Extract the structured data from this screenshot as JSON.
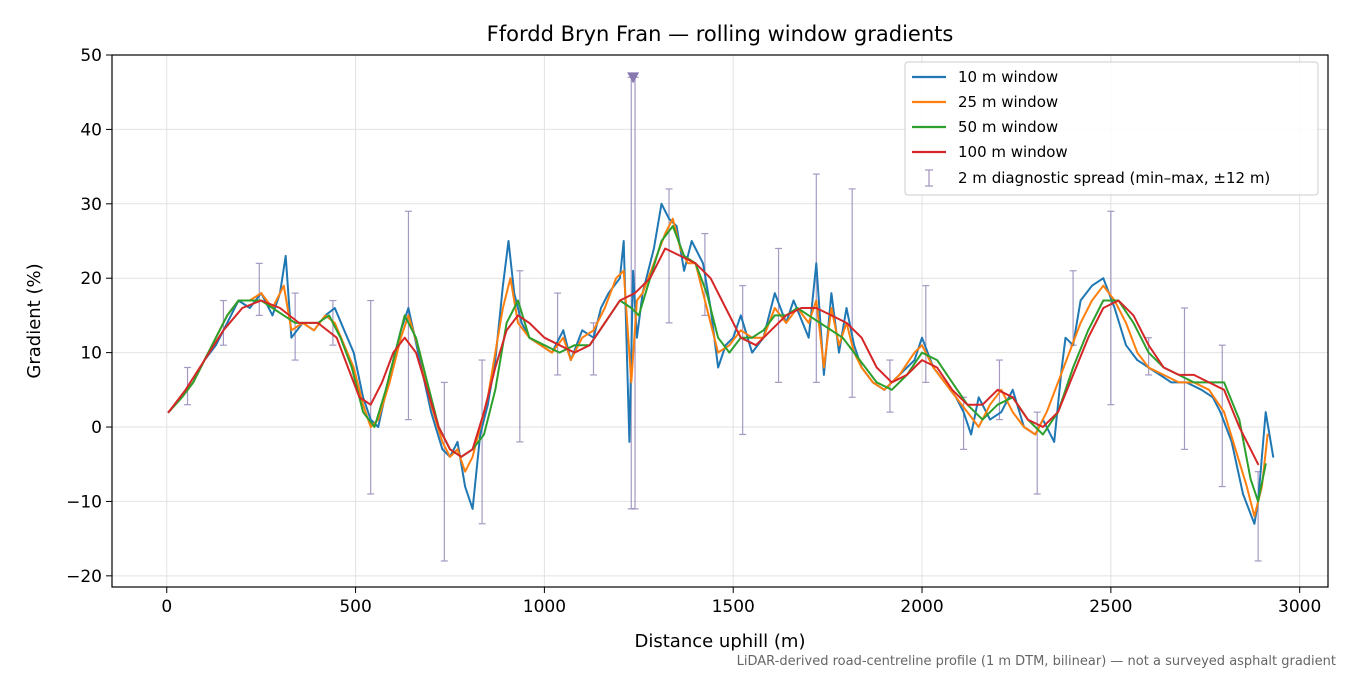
{
  "chart_data": {
    "type": "line",
    "title": "Ffordd Bryn Fran — rolling window gradients",
    "xlabel": "Distance uphill (m)",
    "ylabel": "Gradient (%)",
    "xlim": [
      -145,
      3075
    ],
    "ylim": [
      -21.5,
      50
    ],
    "x_ticks": [
      0,
      500,
      1000,
      1500,
      2000,
      2500,
      3000
    ],
    "y_ticks": [
      -20,
      -10,
      0,
      10,
      20,
      30,
      40,
      50
    ],
    "grid": true,
    "legend_position": "top-right",
    "footnote": "LiDAR-derived road-centreline profile (1 m DTM, bilinear) — not a surveyed asphalt gradient",
    "series": [
      {
        "name": "10 m window",
        "color": "#1f77b4",
        "x": [
          5,
          40,
          70,
          100,
          130,
          160,
          190,
          220,
          250,
          280,
          300,
          315,
          330,
          360,
          390,
          420,
          445,
          470,
          495,
          520,
          540,
          560,
          590,
          620,
          640,
          670,
          700,
          730,
          750,
          770,
          790,
          810,
          830,
          850,
          870,
          890,
          905,
          920,
          940,
          960,
          990,
          1020,
          1050,
          1070,
          1100,
          1130,
          1150,
          1170,
          1200,
          1210,
          1225,
          1235,
          1245,
          1260,
          1290,
          1310,
          1330,
          1350,
          1370,
          1390,
          1420,
          1440,
          1460,
          1480,
          1500,
          1520,
          1550,
          1580,
          1610,
          1640,
          1660,
          1700,
          1720,
          1740,
          1760,
          1780,
          1800,
          1820,
          1840,
          1870,
          1900,
          1940,
          1980,
          2000,
          2030,
          2060,
          2090,
          2110,
          2130,
          2150,
          2180,
          2210,
          2240,
          2270,
          2300,
          2320,
          2350,
          2370,
          2380,
          2400,
          2420,
          2450,
          2480,
          2510,
          2540,
          2570,
          2600,
          2630,
          2660,
          2700,
          2740,
          2770,
          2790,
          2820,
          2850,
          2880,
          2890,
          2910,
          2930
        ],
        "values": [
          2,
          4,
          6,
          9,
          11,
          14,
          17,
          16,
          18,
          15,
          18,
          23,
          12,
          14,
          13,
          15,
          16,
          13,
          10,
          4,
          1,
          0,
          7,
          13,
          16,
          9,
          2,
          -3,
          -4,
          -2,
          -8,
          -11,
          -1,
          3,
          9,
          19,
          25,
          18,
          14,
          12,
          11,
          10,
          13,
          9,
          13,
          12,
          16,
          18,
          20,
          25,
          -2,
          21,
          12,
          18,
          24,
          30,
          28,
          27,
          21,
          25,
          22,
          16,
          8,
          11,
          12,
          15,
          10,
          12,
          18,
          14,
          17,
          12,
          22,
          7,
          18,
          10,
          16,
          11,
          8,
          6,
          5,
          7,
          9,
          12,
          8,
          6,
          4,
          2,
          -1,
          4,
          1,
          2,
          5,
          0,
          -1,
          1,
          -2,
          8,
          12,
          11,
          17,
          19,
          20,
          16,
          11,
          9,
          8,
          7,
          6,
          6,
          5,
          4,
          2,
          -2,
          -9,
          -13,
          -10,
          2,
          -4
        ]
      },
      {
        "name": "25 m window",
        "color": "#ff7f0e",
        "x": [
          5,
          40,
          70,
          100,
          130,
          160,
          190,
          220,
          250,
          280,
          310,
          330,
          360,
          390,
          420,
          445,
          470,
          495,
          520,
          540,
          560,
          590,
          620,
          640,
          670,
          700,
          730,
          750,
          770,
          790,
          810,
          830,
          850,
          870,
          890,
          910,
          930,
          960,
          990,
          1020,
          1050,
          1070,
          1100,
          1130,
          1160,
          1190,
          1210,
          1230,
          1245,
          1260,
          1290,
          1320,
          1340,
          1360,
          1380,
          1400,
          1430,
          1460,
          1490,
          1520,
          1550,
          1580,
          1610,
          1640,
          1670,
          1700,
          1720,
          1740,
          1760,
          1780,
          1800,
          1820,
          1840,
          1870,
          1900,
          1940,
          1980,
          2000,
          2030,
          2060,
          2090,
          2120,
          2150,
          2180,
          2210,
          2240,
          2270,
          2300,
          2330,
          2360,
          2390,
          2420,
          2450,
          2480,
          2510,
          2540,
          2570,
          2600,
          2640,
          2680,
          2720,
          2760,
          2800,
          2830,
          2860,
          2880,
          2900,
          2915
        ],
        "values": [
          2,
          4,
          6,
          9,
          12,
          15,
          17,
          17,
          18,
          16,
          19,
          13,
          14,
          13,
          15,
          14,
          11,
          8,
          3,
          0,
          1,
          6,
          12,
          15,
          10,
          3,
          -2,
          -4,
          -3,
          -6,
          -4,
          0,
          4,
          10,
          16,
          20,
          14,
          12,
          11,
          10,
          12,
          9,
          12,
          13,
          16,
          20,
          21,
          6,
          17,
          18,
          22,
          26,
          28,
          24,
          22,
          22,
          16,
          10,
          11,
          13,
          12,
          12,
          16,
          14,
          16,
          14,
          17,
          8,
          16,
          11,
          14,
          10,
          8,
          6,
          5,
          7,
          10,
          11,
          8,
          6,
          4,
          2,
          0,
          3,
          5,
          2,
          0,
          -1,
          2,
          6,
          10,
          14,
          17,
          19,
          17,
          14,
          10,
          8,
          7,
          6,
          6,
          5,
          2,
          -3,
          -8,
          -12,
          -8,
          -1
        ]
      },
      {
        "name": "50 m window",
        "color": "#2ca02c",
        "x": [
          5,
          40,
          70,
          100,
          130,
          160,
          190,
          220,
          250,
          280,
          310,
          340,
          370,
          400,
          430,
          460,
          490,
          520,
          550,
          580,
          610,
          630,
          660,
          690,
          720,
          750,
          780,
          810,
          840,
          870,
          900,
          930,
          960,
          1000,
          1040,
          1080,
          1120,
          1160,
          1200,
          1230,
          1250,
          1280,
          1310,
          1340,
          1370,
          1400,
          1430,
          1460,
          1490,
          1520,
          1550,
          1580,
          1610,
          1640,
          1670,
          1700,
          1730,
          1760,
          1790,
          1820,
          1850,
          1880,
          1920,
          1960,
          2000,
          2040,
          2080,
          2120,
          2160,
          2200,
          2240,
          2280,
          2320,
          2360,
          2400,
          2440,
          2480,
          2520,
          2560,
          2600,
          2640,
          2680,
          2720,
          2760,
          2800,
          2840,
          2870,
          2890,
          2910
        ],
        "values": [
          2,
          4,
          6,
          9,
          12,
          15,
          17,
          17,
          17,
          16,
          15,
          14,
          14,
          14,
          15,
          12,
          8,
          2,
          0,
          5,
          11,
          15,
          12,
          6,
          0,
          -3,
          -4,
          -3,
          -1,
          5,
          14,
          17,
          12,
          11,
          10,
          11,
          11,
          14,
          17,
          16,
          15,
          20,
          25,
          27,
          23,
          22,
          18,
          12,
          10,
          12,
          12,
          13,
          15,
          15,
          16,
          15,
          14,
          13,
          12,
          10,
          8,
          6,
          5,
          7,
          10,
          9,
          6,
          3,
          1,
          3,
          4,
          1,
          -1,
          2,
          8,
          13,
          17,
          17,
          14,
          10,
          8,
          7,
          6,
          6,
          6,
          1,
          -7,
          -10,
          -5
        ]
      },
      {
        "name": "100 m window",
        "color": "#d62728",
        "x": [
          5,
          50,
          100,
          150,
          200,
          250,
          300,
          350,
          400,
          450,
          480,
          510,
          540,
          570,
          600,
          630,
          660,
          690,
          720,
          750,
          780,
          810,
          840,
          870,
          900,
          930,
          960,
          1000,
          1040,
          1080,
          1120,
          1160,
          1200,
          1240,
          1280,
          1320,
          1360,
          1400,
          1440,
          1480,
          1520,
          1560,
          1600,
          1640,
          1680,
          1720,
          1760,
          1800,
          1840,
          1880,
          1920,
          1960,
          2000,
          2040,
          2080,
          2120,
          2160,
          2200,
          2240,
          2280,
          2320,
          2360,
          2400,
          2440,
          2480,
          2520,
          2560,
          2600,
          2640,
          2680,
          2720,
          2760,
          2800,
          2840,
          2870,
          2890
        ],
        "values": [
          2,
          5,
          9,
          13,
          16,
          17,
          16,
          14,
          14,
          12,
          8,
          4,
          3,
          6,
          10,
          12,
          10,
          5,
          0,
          -3,
          -4,
          -3,
          2,
          8,
          13,
          15,
          14,
          12,
          11,
          10,
          11,
          14,
          17,
          18,
          20,
          24,
          23,
          22,
          20,
          16,
          12,
          11,
          13,
          15,
          16,
          16,
          15,
          14,
          12,
          8,
          6,
          7,
          9,
          8,
          5,
          3,
          3,
          5,
          4,
          1,
          0,
          2,
          7,
          12,
          16,
          17,
          15,
          11,
          8,
          7,
          7,
          6,
          5,
          0,
          -3,
          -5
        ]
      }
    ],
    "diagnostic": {
      "name": "2 m diagnostic spread (min–max, ±12 m)",
      "color": "#8878b0",
      "bars": [
        {
          "x": 55,
          "low": 3,
          "high": 8
        },
        {
          "x": 150,
          "low": 11,
          "high": 17
        },
        {
          "x": 245,
          "low": 15,
          "high": 22
        },
        {
          "x": 340,
          "low": 9,
          "high": 18
        },
        {
          "x": 440,
          "low": 11,
          "high": 17
        },
        {
          "x": 540,
          "low": -9,
          "high": 17
        },
        {
          "x": 640,
          "low": 1,
          "high": 29
        },
        {
          "x": 735,
          "low": -18,
          "high": 6
        },
        {
          "x": 835,
          "low": -13,
          "high": 9
        },
        {
          "x": 935,
          "low": -2,
          "high": 21
        },
        {
          "x": 1035,
          "low": 7,
          "high": 18
        },
        {
          "x": 1130,
          "low": 7,
          "high": 14
        },
        {
          "x": 1230,
          "low": -11,
          "high": 47
        },
        {
          "x": 1240,
          "low": -11,
          "high": 47
        },
        {
          "x": 1330,
          "low": 14,
          "high": 32
        },
        {
          "x": 1425,
          "low": 15,
          "high": 26
        },
        {
          "x": 1525,
          "low": -1,
          "high": 19
        },
        {
          "x": 1620,
          "low": 6,
          "high": 24
        },
        {
          "x": 1720,
          "low": 6,
          "high": 34
        },
        {
          "x": 1815,
          "low": 4,
          "high": 32
        },
        {
          "x": 1915,
          "low": 2,
          "high": 9
        },
        {
          "x": 2010,
          "low": 6,
          "high": 19
        },
        {
          "x": 2110,
          "low": -3,
          "high": 4
        },
        {
          "x": 2205,
          "low": 1,
          "high": 9
        },
        {
          "x": 2305,
          "low": -9,
          "high": 2
        },
        {
          "x": 2400,
          "low": 11,
          "high": 21
        },
        {
          "x": 2500,
          "low": 3,
          "high": 29
        },
        {
          "x": 2600,
          "low": 7,
          "high": 12
        },
        {
          "x": 2695,
          "low": -3,
          "high": 16
        },
        {
          "x": 2795,
          "low": -8,
          "high": 11
        },
        {
          "x": 2890,
          "low": -18,
          "high": -6
        }
      ],
      "marker_x": 1235,
      "marker_y": 47
    }
  }
}
